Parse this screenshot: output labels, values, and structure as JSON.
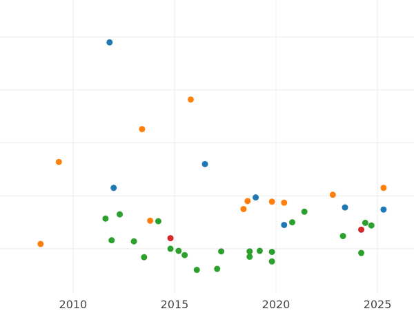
{
  "chart_data": {
    "type": "scatter",
    "title": "",
    "xlabel": "",
    "ylabel": "",
    "x_ticks": [
      "2010",
      "2015",
      "2020",
      "2025"
    ],
    "x_tick_values": [
      2010,
      2015,
      2020,
      2025
    ],
    "y_gridlines": [
      1,
      2,
      3,
      4,
      5
    ],
    "xlim": [
      2006.4,
      2026.8
    ],
    "ylim": [
      0.15,
      5.7
    ],
    "grid": true,
    "legend": "none",
    "series": [
      {
        "color": "#1f77b4",
        "points": [
          {
            "x": 2011.8,
            "y": 4.9
          },
          {
            "x": 2012.0,
            "y": 2.15
          },
          {
            "x": 2016.5,
            "y": 2.6
          },
          {
            "x": 2019.0,
            "y": 1.97
          },
          {
            "x": 2020.4,
            "y": 1.45
          },
          {
            "x": 2023.4,
            "y": 1.78
          },
          {
            "x": 2025.3,
            "y": 1.74
          }
        ]
      },
      {
        "color": "#ff7f0e",
        "points": [
          {
            "x": 2008.4,
            "y": 1.09
          },
          {
            "x": 2009.3,
            "y": 2.64
          },
          {
            "x": 2013.4,
            "y": 3.26
          },
          {
            "x": 2013.8,
            "y": 1.53
          },
          {
            "x": 2015.8,
            "y": 3.82
          },
          {
            "x": 2018.4,
            "y": 1.75
          },
          {
            "x": 2018.6,
            "y": 1.9
          },
          {
            "x": 2019.8,
            "y": 1.89
          },
          {
            "x": 2020.4,
            "y": 1.87
          },
          {
            "x": 2022.8,
            "y": 2.02
          },
          {
            "x": 2025.3,
            "y": 2.15
          }
        ]
      },
      {
        "color": "#2ca02c",
        "points": [
          {
            "x": 2011.6,
            "y": 1.57
          },
          {
            "x": 2011.9,
            "y": 1.16
          },
          {
            "x": 2012.3,
            "y": 1.65
          },
          {
            "x": 2013.0,
            "y": 1.14
          },
          {
            "x": 2013.5,
            "y": 0.84
          },
          {
            "x": 2014.2,
            "y": 1.52
          },
          {
            "x": 2014.8,
            "y": 1.0
          },
          {
            "x": 2015.2,
            "y": 0.96
          },
          {
            "x": 2015.5,
            "y": 0.88
          },
          {
            "x": 2016.1,
            "y": 0.6
          },
          {
            "x": 2017.1,
            "y": 0.62
          },
          {
            "x": 2017.3,
            "y": 0.95
          },
          {
            "x": 2018.7,
            "y": 0.95
          },
          {
            "x": 2018.7,
            "y": 0.85
          },
          {
            "x": 2019.2,
            "y": 0.96
          },
          {
            "x": 2019.8,
            "y": 0.94
          },
          {
            "x": 2019.8,
            "y": 0.76
          },
          {
            "x": 2020.8,
            "y": 1.5
          },
          {
            "x": 2021.4,
            "y": 1.7
          },
          {
            "x": 2023.3,
            "y": 1.24
          },
          {
            "x": 2024.2,
            "y": 0.92
          },
          {
            "x": 2024.4,
            "y": 1.49
          },
          {
            "x": 2024.7,
            "y": 1.44
          }
        ]
      },
      {
        "color": "#d62728",
        "points": [
          {
            "x": 2014.8,
            "y": 1.2
          },
          {
            "x": 2024.2,
            "y": 1.36
          }
        ]
      }
    ]
  }
}
